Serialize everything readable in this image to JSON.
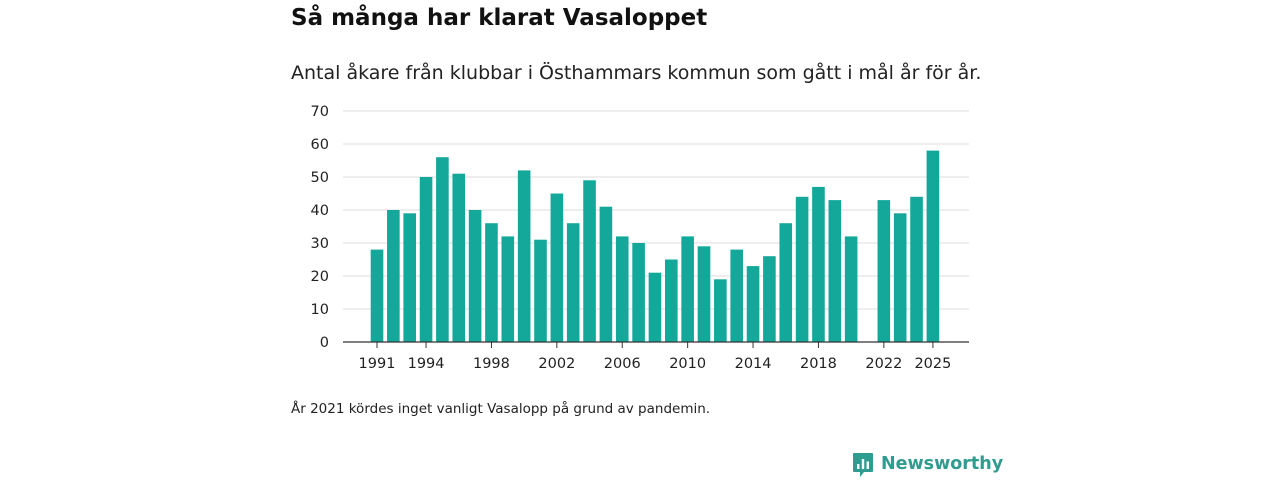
{
  "brand": {
    "name": "Newsworthy",
    "color": "#2e9c8e"
  },
  "footnote": "År 2021 kördes inget vanligt Vasalopp på grund av pandemin.",
  "chart_data": {
    "type": "bar",
    "title": "Så många har klarat Vasaloppet",
    "subtitle": "Antal åkare från klubbar i Östhammars kommun som gått i mål år för år.",
    "xlabel": "",
    "ylabel": "",
    "categories": [
      1991,
      1992,
      1993,
      1994,
      1995,
      1996,
      1997,
      1998,
      1999,
      2000,
      2001,
      2002,
      2003,
      2004,
      2005,
      2006,
      2007,
      2008,
      2009,
      2010,
      2011,
      2012,
      2013,
      2014,
      2015,
      2016,
      2017,
      2018,
      2019,
      2020,
      2021,
      2022,
      2023,
      2024,
      2025
    ],
    "values": [
      28,
      40,
      39,
      50,
      56,
      51,
      40,
      36,
      32,
      52,
      31,
      45,
      36,
      49,
      41,
      32,
      30,
      21,
      25,
      32,
      29,
      19,
      28,
      23,
      26,
      36,
      44,
      47,
      43,
      32,
      null,
      43,
      39,
      44,
      58
    ],
    "ylim": [
      0,
      70
    ],
    "yticks": [
      0,
      10,
      20,
      30,
      40,
      50,
      60,
      70
    ],
    "xticks": [
      1991,
      1994,
      1998,
      2002,
      2006,
      2010,
      2014,
      2018,
      2022,
      2025
    ],
    "bar_color": "#13a89a",
    "grid": true
  }
}
